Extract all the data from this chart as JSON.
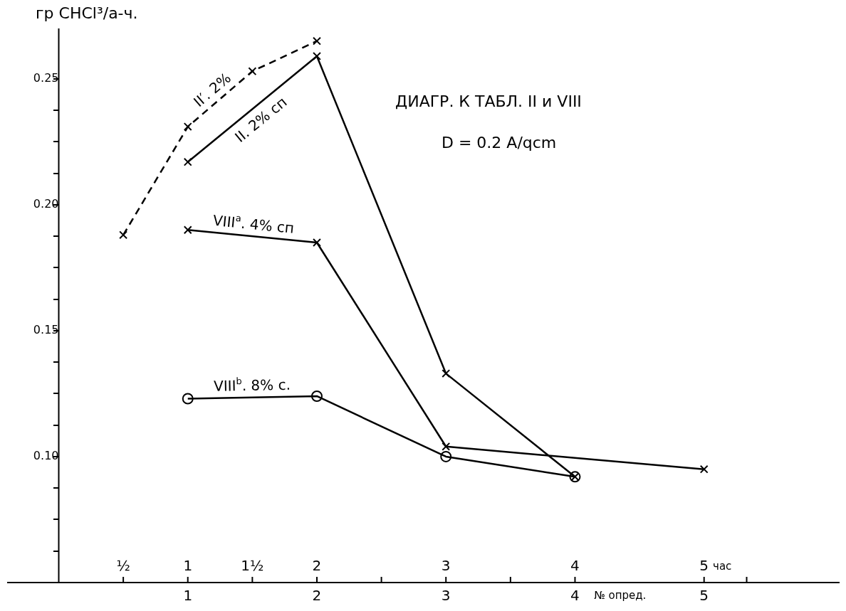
{
  "chart_data": {
    "type": "line",
    "title": "ДИАГР. К ТАБЛ. II и VIII",
    "subtitle": "D = 0.2 A/qcm",
    "ylabel": "гр CHCl³/а-ч.",
    "xlabel": "№ опред.",
    "x2label": "час",
    "xlim": [
      -0.4,
      6.05
    ],
    "xticks": [
      1,
      2,
      3,
      4,
      5
    ],
    "x2lim": [
      -0.4,
      6.05
    ],
    "x2ticks": [
      {
        "value": 0.5,
        "label": "½"
      },
      1,
      {
        "value": 1.5,
        "label": "1½"
      },
      2,
      {
        "value": 2.5,
        "label": null
      },
      3,
      {
        "value": 3.5,
        "label": null
      },
      4,
      5,
      {
        "value": 5.33,
        "label": null
      }
    ],
    "ylim": [
      0.05,
      0.27
    ],
    "yticks": [
      {
        "value": 0.0625,
        "label": null
      },
      {
        "value": 0.075,
        "label": null
      },
      {
        "value": 0.0875,
        "label": null
      },
      {
        "value": 0.1,
        "label": "0.10"
      },
      {
        "value": 0.1125,
        "label": null
      },
      {
        "value": 0.125,
        "label": null
      },
      {
        "value": 0.1375,
        "label": null
      },
      {
        "value": 0.15,
        "label": "0.15"
      },
      {
        "value": 0.1625,
        "label": null
      },
      {
        "value": 0.175,
        "label": null
      },
      {
        "value": 0.1875,
        "label": null
      },
      {
        "value": 0.2,
        "label": "0.20"
      },
      {
        "value": 0.2125,
        "label": null
      },
      {
        "value": 0.225,
        "label": null
      },
      {
        "value": 0.2375,
        "label": null
      },
      {
        "value": 0.25,
        "label": "0.25"
      }
    ],
    "grid": false,
    "legend": false,
    "series": [
      {
        "name": "II′. 2%",
        "color": "#000000",
        "x": [
          0.5,
          1,
          1.5,
          2
        ],
        "values": [
          0.188,
          0.231,
          0.253,
          0.265
        ],
        "line_style": "dashed",
        "marker": "cross"
      },
      {
        "name": "II. 2% сп",
        "color": "#000000",
        "x": [
          1,
          2,
          3,
          4
        ],
        "values": [
          0.217,
          0.259,
          0.133,
          0.092
        ],
        "line_style": "solid",
        "marker": "cross"
      },
      {
        "name": "VIII$^{a}$. 4% сп",
        "color": "#000000",
        "x": [
          1,
          2,
          3,
          5
        ],
        "values": [
          0.19,
          0.185,
          0.104,
          0.095
        ],
        "line_style": "solid",
        "marker": "cross"
      },
      {
        "name": "VIII$^{b}$. 8% с.",
        "color": "#000000",
        "x": [
          1,
          2,
          3,
          4
        ],
        "values": [
          0.123,
          0.124,
          0.1,
          0.092
        ],
        "line_style": "solid",
        "marker": "circle"
      }
    ]
  }
}
